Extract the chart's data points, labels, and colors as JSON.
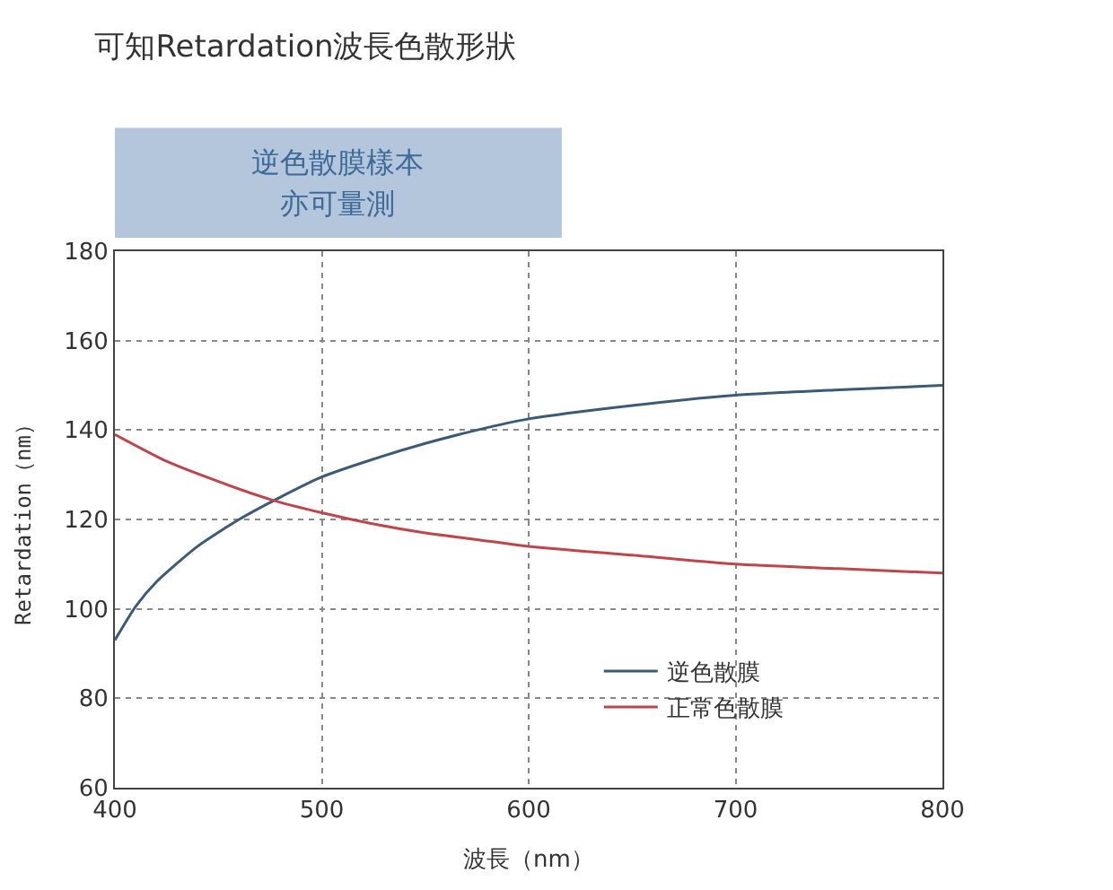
{
  "chart_data": {
    "type": "line",
    "title": "可知Retardation波長色散形狀",
    "annotations": [
      "逆色散膜樣本",
      "亦可量測"
    ],
    "xlabel": "波長（nm）",
    "ylabel": "Retardation（nm）",
    "xlim": [
      400,
      800
    ],
    "xticks": [
      400,
      500,
      600,
      700,
      800
    ],
    "ylim": [
      60,
      180
    ],
    "yticks": [
      60,
      80,
      100,
      120,
      140,
      160,
      180
    ],
    "grid": true,
    "legend": "bottom right",
    "line_style": "solid",
    "marker": "none",
    "series": [
      {
        "name": "逆色散膜",
        "color": "#3b5a78",
        "x": [
          400,
          410,
          420,
          440,
          460,
          480,
          500,
          525,
          550,
          575,
          600,
          650,
          700,
          750,
          800
        ],
        "values": [
          93,
          100.5,
          106,
          114,
          120,
          125,
          129.5,
          133.5,
          137,
          140,
          142.5,
          145.5,
          147.8,
          149,
          150
        ]
      },
      {
        "name": "正常色散膜",
        "color": "#c0454a",
        "x": [
          400,
          425,
          450,
          475,
          500,
          525,
          550,
          575,
          600,
          650,
          700,
          750,
          800
        ],
        "values": [
          139,
          133,
          128.5,
          124.5,
          121.5,
          119,
          117,
          115.5,
          114,
          112,
          110,
          109,
          108
        ]
      }
    ]
  }
}
